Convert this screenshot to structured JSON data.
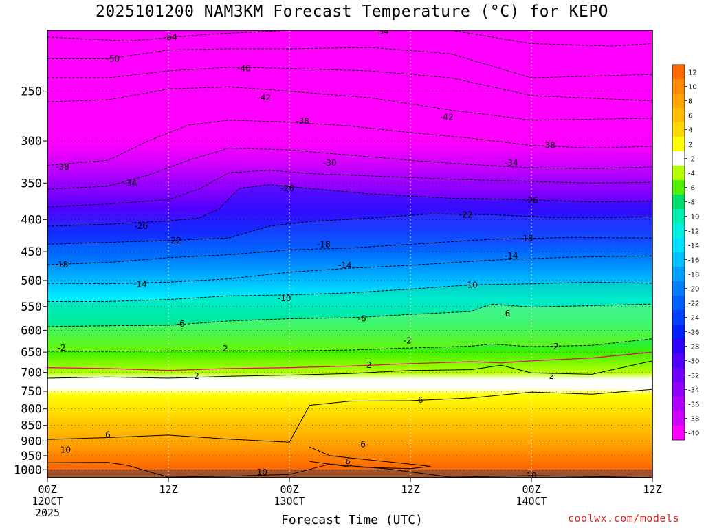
{
  "chart_data": {
    "type": "heatmap",
    "title": "2025101200 NAM3KM Forecast Temperature (°C) for KEPO",
    "xlabel": "Forecast Time (UTC)",
    "ylabel": "",
    "y_axis": {
      "scale": "log",
      "reversed": true,
      "range": [
        1030,
        200
      ],
      "ticks": [
        1000,
        950,
        900,
        850,
        800,
        750,
        700,
        650,
        600,
        550,
        500,
        450,
        400,
        350,
        300,
        250
      ]
    },
    "x_axis": {
      "range_hours": [
        0,
        60
      ],
      "ticks": [
        {
          "hour": 0,
          "label": "00Z",
          "line2": "12OCT",
          "line3": "2025"
        },
        {
          "hour": 12,
          "label": "12Z",
          "line2": "",
          "line3": ""
        },
        {
          "hour": 24,
          "label": "00Z",
          "line2": "13OCT",
          "line3": ""
        },
        {
          "hour": 36,
          "label": "12Z",
          "line2": "",
          "line3": ""
        },
        {
          "hour": 48,
          "label": "00Z",
          "line2": "14OCT",
          "line3": ""
        },
        {
          "hour": 60,
          "label": "12Z",
          "line2": "",
          "line3": ""
        }
      ]
    },
    "grid": true,
    "colorbar": {
      "levels": [
        12,
        10,
        8,
        6,
        4,
        2,
        -2,
        -4,
        -6,
        -8,
        -10,
        -12,
        -14,
        -16,
        -18,
        -20,
        -22,
        -24,
        -26,
        -28,
        -30,
        -32,
        -34,
        -36,
        -38,
        -40
      ],
      "colors": [
        "#ff6a00",
        "#ff8c00",
        "#ffa500",
        "#ffbf00",
        "#ffd700",
        "#ffff00",
        "#ffffff",
        "#b4ff00",
        "#50f000",
        "#00e070",
        "#00f0b0",
        "#00f0e0",
        "#00e0ff",
        "#00c0ff",
        "#00a0ff",
        "#0080ff",
        "#0060ff",
        "#0040ff",
        "#0020ff",
        "#3000ff",
        "#5000ff",
        "#7000ff",
        "#9000ff",
        "#b000ff",
        "#d000ff",
        "#ff00ff"
      ]
    },
    "contours": [
      {
        "label": "-54",
        "points": [
          [
            0,
            205
          ],
          [
            8,
            208
          ],
          [
            16,
            203
          ],
          [
            24,
            200
          ],
          [
            32,
            196
          ],
          [
            40,
            200
          ],
          [
            48,
            210
          ],
          [
            56,
            212
          ],
          [
            60,
            210
          ]
        ]
      },
      {
        "label": "-50",
        "points": [
          [
            0,
            222
          ],
          [
            6,
            222
          ],
          [
            12,
            215
          ],
          [
            18,
            214
          ],
          [
            24,
            214
          ],
          [
            32,
            213
          ],
          [
            40,
            218
          ],
          [
            48,
            238
          ],
          [
            60,
            235
          ]
        ]
      },
      {
        "label": "-46",
        "points": [
          [
            0,
            238
          ],
          [
            6,
            238
          ],
          [
            12,
            232
          ],
          [
            18,
            229
          ],
          [
            24,
            230
          ],
          [
            32,
            232
          ],
          [
            40,
            238
          ],
          [
            48,
            254
          ],
          [
            60,
            259
          ]
        ]
      },
      {
        "label": "-42",
        "points": [
          [
            0,
            260
          ],
          [
            6,
            258
          ],
          [
            12,
            248
          ],
          [
            18,
            246
          ],
          [
            24,
            250
          ],
          [
            32,
            256
          ],
          [
            40,
            268
          ],
          [
            48,
            278
          ],
          [
            60,
            276
          ]
        ]
      },
      {
        "label": "-38",
        "points": [
          [
            0,
            328
          ],
          [
            6,
            322
          ],
          [
            10,
            300
          ],
          [
            14,
            283
          ],
          [
            18,
            278
          ],
          [
            24,
            280
          ],
          [
            30,
            284
          ],
          [
            36,
            291
          ],
          [
            42,
            297
          ],
          [
            48,
            305
          ],
          [
            54,
            308
          ],
          [
            60,
            306
          ]
        ]
      },
      {
        "label": "-34",
        "points": [
          [
            0,
            358
          ],
          [
            6,
            354
          ],
          [
            10,
            340
          ],
          [
            14,
            322
          ],
          [
            18,
            308
          ],
          [
            24,
            310
          ],
          [
            30,
            316
          ],
          [
            36,
            322
          ],
          [
            42,
            327
          ],
          [
            48,
            331
          ],
          [
            54,
            332
          ],
          [
            60,
            330
          ]
        ]
      },
      {
        "label": "-30",
        "points": [
          [
            0,
            382
          ],
          [
            6,
            378
          ],
          [
            12,
            372
          ],
          [
            15,
            358
          ],
          [
            18,
            337
          ],
          [
            22,
            334
          ],
          [
            26,
            338
          ],
          [
            32,
            341
          ],
          [
            40,
            345
          ],
          [
            48,
            348
          ],
          [
            54,
            350
          ],
          [
            60,
            349
          ]
        ]
      },
      {
        "label": "-26",
        "points": [
          [
            0,
            410
          ],
          [
            6,
            407
          ],
          [
            12,
            402
          ],
          [
            15,
            398
          ],
          [
            17,
            385
          ],
          [
            19,
            357
          ],
          [
            22,
            352
          ],
          [
            26,
            357
          ],
          [
            32,
            364
          ],
          [
            40,
            370
          ],
          [
            48,
            372
          ],
          [
            54,
            375
          ],
          [
            60,
            374
          ]
        ]
      },
      {
        "label": "-22",
        "points": [
          [
            0,
            438
          ],
          [
            6,
            435
          ],
          [
            12,
            432
          ],
          [
            18,
            428
          ],
          [
            22,
            410
          ],
          [
            26,
            403
          ],
          [
            32,
            398
          ],
          [
            38,
            392
          ],
          [
            44,
            393
          ],
          [
            50,
            397
          ],
          [
            56,
            397
          ],
          [
            60,
            396
          ]
        ]
      },
      {
        "label": "-18",
        "points": [
          [
            0,
            472
          ],
          [
            6,
            468
          ],
          [
            12,
            460
          ],
          [
            18,
            455
          ],
          [
            24,
            447
          ],
          [
            30,
            444
          ],
          [
            36,
            438
          ],
          [
            44,
            430
          ],
          [
            52,
            427
          ],
          [
            60,
            428
          ]
        ]
      },
      {
        "label": "-14",
        "points": [
          [
            0,
            505
          ],
          [
            6,
            506
          ],
          [
            12,
            503
          ],
          [
            18,
            497
          ],
          [
            24,
            485
          ],
          [
            30,
            478
          ],
          [
            36,
            473
          ],
          [
            44,
            464
          ],
          [
            52,
            459
          ],
          [
            60,
            457
          ]
        ]
      },
      {
        "label": "-10",
        "points": [
          [
            0,
            540
          ],
          [
            6,
            540
          ],
          [
            12,
            536
          ],
          [
            18,
            529
          ],
          [
            24,
            527
          ],
          [
            30,
            523
          ],
          [
            36,
            516
          ],
          [
            42,
            508
          ],
          [
            48,
            506
          ],
          [
            54,
            503
          ],
          [
            60,
            505
          ]
        ]
      },
      {
        "label": "-6",
        "points": [
          [
            0,
            592
          ],
          [
            6,
            590
          ],
          [
            12,
            589
          ],
          [
            18,
            580
          ],
          [
            24,
            575
          ],
          [
            30,
            573
          ],
          [
            36,
            566
          ],
          [
            42,
            560
          ],
          [
            44,
            545
          ],
          [
            48,
            551
          ],
          [
            54,
            548
          ],
          [
            60,
            545
          ]
        ]
      },
      {
        "label": "-2",
        "points": [
          [
            0,
            648
          ],
          [
            6,
            648
          ],
          [
            12,
            647
          ],
          [
            18,
            647
          ],
          [
            24,
            647
          ],
          [
            30,
            645
          ],
          [
            36,
            640
          ],
          [
            42,
            636
          ],
          [
            44,
            631
          ],
          [
            48,
            637
          ],
          [
            54,
            634
          ],
          [
            60,
            619
          ]
        ]
      },
      {
        "label": "",
        "color": "#e0106e",
        "points": [
          [
            0,
            688
          ],
          [
            6,
            690
          ],
          [
            12,
            695
          ],
          [
            18,
            690
          ],
          [
            24,
            688
          ],
          [
            30,
            684
          ],
          [
            36,
            678
          ],
          [
            42,
            673
          ],
          [
            45,
            676
          ],
          [
            48,
            671
          ],
          [
            54,
            664
          ],
          [
            60,
            650
          ]
        ]
      },
      {
        "label": "2",
        "points": [
          [
            0,
            715
          ],
          [
            6,
            712
          ],
          [
            12,
            715
          ],
          [
            18,
            710
          ],
          [
            24,
            707
          ],
          [
            30,
            703
          ],
          [
            36,
            695
          ],
          [
            42,
            693
          ],
          [
            45,
            682
          ],
          [
            48,
            701
          ],
          [
            54,
            705
          ],
          [
            60,
            671
          ]
        ]
      },
      {
        "label": "6",
        "points": [
          [
            0,
            895
          ],
          [
            6,
            889
          ],
          [
            12,
            881
          ],
          [
            18,
            894
          ],
          [
            24,
            904
          ],
          [
            26,
            790
          ],
          [
            30,
            778
          ],
          [
            36,
            777
          ],
          [
            42,
            769
          ],
          [
            48,
            752
          ],
          [
            54,
            758
          ],
          [
            60,
            745
          ]
        ]
      },
      {
        "label": "10",
        "points": [
          [
            0,
            975
          ],
          [
            6,
            974
          ],
          [
            8,
            985
          ],
          [
            12,
            1028
          ],
          [
            18,
            1024
          ],
          [
            24,
            1018
          ],
          [
            28,
            980
          ],
          [
            34,
            998
          ],
          [
            40,
            1028
          ],
          [
            48,
            1022
          ],
          [
            56,
            1027
          ],
          [
            60,
            1030
          ]
        ]
      },
      {
        "label": "6",
        "points": [
          [
            26,
            920
          ],
          [
            28,
            950
          ],
          [
            32,
            965
          ],
          [
            36,
            980
          ],
          [
            38,
            988
          ],
          [
            36,
            996
          ],
          [
            30,
            990
          ],
          [
            26,
            970
          ]
        ]
      }
    ],
    "contour_labels": [
      {
        "text": "-54",
        "hour": 12.2,
        "p": 205
      },
      {
        "text": "-54",
        "hour": 33.2,
        "p": 201
      },
      {
        "text": "-50",
        "hour": 6.5,
        "p": 222
      },
      {
        "text": "-46",
        "hour": 19.5,
        "p": 230
      },
      {
        "text": "-42",
        "hour": 21.5,
        "p": 256
      },
      {
        "text": "-42",
        "hour": 39.6,
        "p": 275
      },
      {
        "text": "-38",
        "hour": 1.5,
        "p": 330
      },
      {
        "text": "-38",
        "hour": 25.3,
        "p": 279
      },
      {
        "text": "-38",
        "hour": 49.7,
        "p": 305
      },
      {
        "text": "-34",
        "hour": 8.2,
        "p": 350
      },
      {
        "text": "-34",
        "hour": 46.0,
        "p": 325
      },
      {
        "text": "-30",
        "hour": 28.0,
        "p": 325
      },
      {
        "text": "-26",
        "hour": 9.3,
        "p": 410
      },
      {
        "text": "-26",
        "hour": 23.8,
        "p": 357
      },
      {
        "text": "-26",
        "hour": 48.0,
        "p": 373
      },
      {
        "text": "-22",
        "hour": 12.6,
        "p": 432
      },
      {
        "text": "-22",
        "hour": 41.5,
        "p": 393
      },
      {
        "text": "-18",
        "hour": 1.4,
        "p": 472
      },
      {
        "text": "-18",
        "hour": 27.4,
        "p": 438
      },
      {
        "text": "-18",
        "hour": 47.5,
        "p": 429
      },
      {
        "text": "-14",
        "hour": 9.2,
        "p": 507
      },
      {
        "text": "-14",
        "hour": 29.5,
        "p": 473
      },
      {
        "text": "-14",
        "hour": 46.0,
        "p": 457
      },
      {
        "text": "-10",
        "hour": 23.5,
        "p": 534
      },
      {
        "text": "-10",
        "hour": 42.0,
        "p": 508
      },
      {
        "text": "-6",
        "hour": 13.2,
        "p": 586
      },
      {
        "text": "-6",
        "hour": 31.2,
        "p": 575
      },
      {
        "text": "-6",
        "hour": 45.5,
        "p": 564
      },
      {
        "text": "-2",
        "hour": 1.4,
        "p": 640
      },
      {
        "text": "-2",
        "hour": 17.5,
        "p": 642
      },
      {
        "text": "-2",
        "hour": 35.7,
        "p": 623
      },
      {
        "text": "-2",
        "hour": 50.3,
        "p": 637
      },
      {
        "text": "2",
        "hour": 14.8,
        "p": 710
      },
      {
        "text": "2",
        "hour": 31.9,
        "p": 682
      },
      {
        "text": "2",
        "hour": 50.0,
        "p": 710
      },
      {
        "text": "6",
        "hour": 6.0,
        "p": 880
      },
      {
        "text": "6",
        "hour": 37.0,
        "p": 775
      },
      {
        "text": "6",
        "hour": 31.3,
        "p": 912
      },
      {
        "text": "6",
        "hour": 29.8,
        "p": 971
      },
      {
        "text": "10",
        "hour": 1.8,
        "p": 930
      },
      {
        "text": "10",
        "hour": 21.3,
        "p": 1010
      },
      {
        "text": "10",
        "hour": 48.0,
        "p": 1022
      }
    ]
  },
  "page": {
    "watermark": "coolwx.com/models"
  }
}
